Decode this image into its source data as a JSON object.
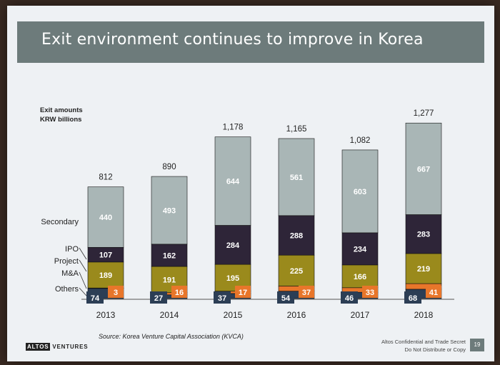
{
  "slide": {
    "title": "Exit environment continues to improve in Korea",
    "source": "Source: Korea Venture Capital Association (KVCA)",
    "logo_part1": "ALTOS",
    "logo_part2": "VENTURES",
    "confidential_line1": "Altos Confidential and Trade Secret",
    "confidential_line2": "Do Not Distribute or Copy",
    "page_number": "19"
  },
  "colors": {
    "Others": "#2c3e55",
    "M&A": "#e8762a",
    "Project": "#9a8a1c",
    "IPO": "#2e2538",
    "Secondary": "#a9b6b6",
    "title_bar": "#6d7b7b"
  },
  "chart_data": {
    "type": "bar",
    "stacked": true,
    "title": "",
    "ylabel": "Exit amounts\nKRW billions",
    "ylabel_lines": [
      "Exit amounts",
      "KRW billions"
    ],
    "categories": [
      "2013",
      "2014",
      "2015",
      "2016",
      "2017",
      "2018"
    ],
    "series": [
      {
        "name": "Others",
        "values": [
          74,
          27,
          37,
          54,
          46,
          68
        ]
      },
      {
        "name": "M&A",
        "values": [
          3,
          16,
          17,
          37,
          33,
          41
        ]
      },
      {
        "name": "Project",
        "values": [
          189,
          191,
          195,
          225,
          166,
          219
        ]
      },
      {
        "name": "IPO",
        "values": [
          107,
          162,
          284,
          288,
          234,
          283
        ]
      },
      {
        "name": "Secondary",
        "values": [
          440,
          493,
          644,
          561,
          603,
          667
        ]
      }
    ],
    "totals": [
      "812",
      "890",
      "1,178",
      "1,165",
      "1,082",
      "1,277"
    ],
    "legend": [
      "Secondary",
      "IPO",
      "Project",
      "M&A",
      "Others"
    ],
    "legend_placement": "left",
    "ylim": [
      0,
      1300
    ],
    "grid": false
  }
}
